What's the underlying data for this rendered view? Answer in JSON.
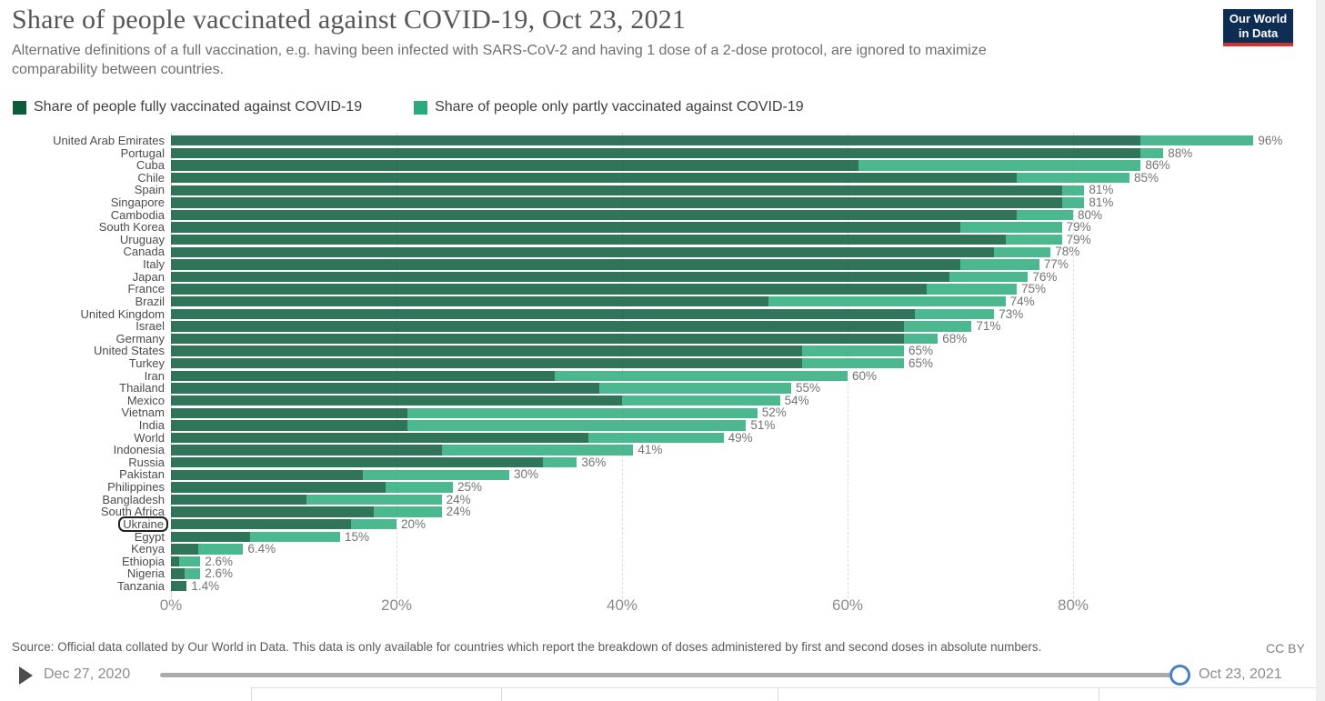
{
  "header": {
    "title": "Share of people vaccinated against COVID-19, Oct 23, 2021",
    "subtitle": "Alternative definitions of a full vaccination, e.g. having been infected with SARS-CoV-2 and having 1 dose of a 2-dose protocol, are ignored to maximize comparability between countries.",
    "logo_line1": "Our World",
    "logo_line2": "in Data"
  },
  "legend": {
    "items": [
      {
        "label": "Share of people fully vaccinated against COVID-19",
        "color": "#0c5c3c"
      },
      {
        "label": "Share of people only partly vaccinated against COVID-19",
        "color": "#2bab7d"
      }
    ]
  },
  "chart_data": {
    "type": "bar",
    "orientation": "horizontal",
    "stacked": true,
    "title": "Share of people vaccinated against COVID-19, Oct 23, 2021",
    "xlabel": "",
    "ylabel": "",
    "xlim": [
      0,
      101
    ],
    "grid": "dashed-vertical",
    "x_tick_labels": [
      "0%",
      "20%",
      "40%",
      "60%",
      "80%"
    ],
    "x_tick_values": [
      0,
      20,
      40,
      60,
      80
    ],
    "highlighted_category": "Ukraine",
    "categories": [
      "United Arab Emirates",
      "Portugal",
      "Cuba",
      "Chile",
      "Spain",
      "Singapore",
      "Cambodia",
      "South Korea",
      "Uruguay",
      "Canada",
      "Italy",
      "Japan",
      "France",
      "Brazil",
      "United Kingdom",
      "Israel",
      "Germany",
      "United States",
      "Turkey",
      "Iran",
      "Thailand",
      "Mexico",
      "Vietnam",
      "India",
      "World",
      "Indonesia",
      "Russia",
      "Pakistan",
      "Philippines",
      "Bangladesh",
      "South Africa",
      "Ukraine",
      "Egypt",
      "Kenya",
      "Ethiopia",
      "Nigeria",
      "Tanzania"
    ],
    "series": [
      {
        "name": "Share of people fully vaccinated against COVID-19",
        "color": "#0c5c3c",
        "values": [
          86,
          86,
          61,
          75,
          79,
          79,
          75,
          70,
          74,
          73,
          70,
          69,
          67,
          53,
          66,
          65,
          65,
          56,
          56,
          34,
          38,
          40,
          21,
          21,
          37,
          24,
          33,
          17,
          19,
          12,
          18,
          16,
          7,
          2.4,
          0.7,
          1.2,
          1.4
        ]
      },
      {
        "name": "Share of people only partly vaccinated against COVID-19",
        "color": "#2bab7d",
        "values": [
          10,
          2,
          25,
          10,
          2,
          2,
          5,
          9,
          5,
          5,
          7,
          7,
          8,
          21,
          7,
          6,
          3,
          9,
          9,
          26,
          17,
          14,
          31,
          30,
          12,
          17,
          3,
          13,
          6,
          12,
          6,
          4,
          8,
          4.0,
          1.9,
          1.4,
          0
        ]
      }
    ],
    "total_labels": [
      "96%",
      "88%",
      "86%",
      "85%",
      "81%",
      "81%",
      "80%",
      "79%",
      "79%",
      "78%",
      "77%",
      "76%",
      "75%",
      "74%",
      "73%",
      "71%",
      "68%",
      "65%",
      "65%",
      "60%",
      "55%",
      "54%",
      "52%",
      "51%",
      "49%",
      "41%",
      "36%",
      "30%",
      "25%",
      "24%",
      "24%",
      "20%",
      "15%",
      "6.4%",
      "2.6%",
      "2.6%",
      "1.4%"
    ]
  },
  "footer": {
    "source": "Source: Official data collated by Our World in Data. This data is only available for countries which report the breakdown of doses administered by first and second doses in absolute numbers.",
    "license": "CC BY"
  },
  "timeline": {
    "start": "Dec 27, 2020",
    "end": "Oct 23, 2021"
  }
}
